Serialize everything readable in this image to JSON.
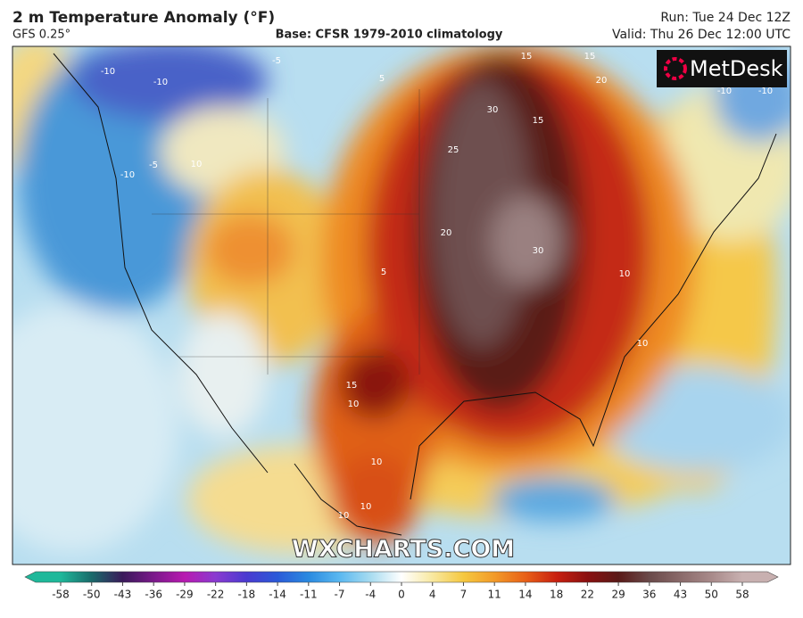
{
  "header": {
    "title": "2 m Temperature Anomaly (°F)",
    "model": "GFS 0.25°",
    "base": "Base: CFSR 1979-2010 climatology",
    "run": "Run: Tue 24 Dec 12Z",
    "valid": "Valid: Thu 26 Dec 12:00 UTC"
  },
  "logo": "MetDesk",
  "watermark": "WXCHARTS.COM",
  "map": {
    "contour_labels": [
      15,
      15,
      20,
      30,
      15,
      25,
      20,
      30,
      10,
      10,
      15,
      10,
      10,
      10,
      10,
      -10,
      -10,
      -10,
      -5,
      5,
      10,
      -10,
      -10,
      5,
      -5
    ]
  },
  "colorbar": {
    "ticks": [
      -58,
      -50,
      -43,
      -36,
      -29,
      -22,
      -18,
      -14,
      -11,
      -7,
      -4,
      0,
      4,
      7,
      11,
      14,
      18,
      22,
      29,
      36,
      43,
      50,
      58
    ],
    "colors": [
      "#1fb89a",
      "#1a6a6a",
      "#3a1a5a",
      "#7a1a8a",
      "#b81ab0",
      "#8a3ad0",
      "#4a3ad0",
      "#2a5ad8",
      "#2a8ae0",
      "#5ab8f0",
      "#a8dcf0",
      "#ffffff",
      "#f8e8a0",
      "#f5c840",
      "#f29a28",
      "#e86018",
      "#c82010",
      "#8a1010",
      "#5a1a18",
      "#6a4a4a",
      "#8a6a6a",
      "#a88a8a",
      "#c8b0b0"
    ]
  }
}
